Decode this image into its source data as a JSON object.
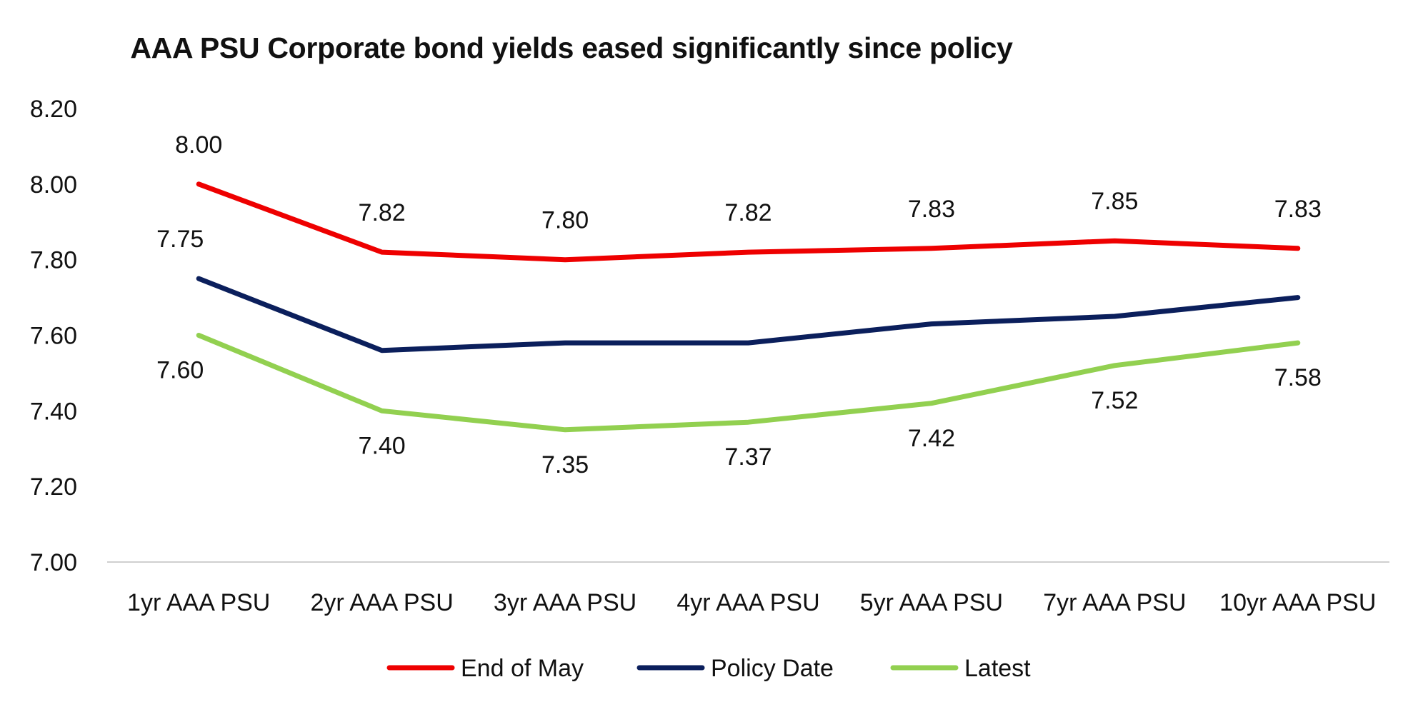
{
  "chart_data": {
    "type": "line",
    "title": "AAA PSU Corporate bond yields eased significantly since policy",
    "xlabel": "",
    "ylabel": "",
    "categories": [
      "1yr AAA PSU",
      "2yr AAA PSU",
      "3yr AAA PSU",
      "4yr AAA PSU",
      "5yr AAA PSU",
      "7yr AAA PSU",
      "10yr AAA PSU"
    ],
    "ylim": [
      7.0,
      8.2
    ],
    "yticks": [
      "7.00",
      "7.20",
      "7.40",
      "7.60",
      "7.80",
      "8.00",
      "8.20"
    ],
    "grid": false,
    "legend_position": "bottom",
    "series": [
      {
        "name": "End of May",
        "color": "#ee0000",
        "values": [
          8.0,
          7.82,
          7.8,
          7.82,
          7.83,
          7.85,
          7.83
        ],
        "labels": [
          "8.00",
          "7.82",
          "7.80",
          "7.82",
          "7.83",
          "7.85",
          "7.83"
        ],
        "label_position": "above"
      },
      {
        "name": "Policy Date",
        "color": "#0b1f5c",
        "values": [
          7.75,
          7.56,
          7.58,
          7.58,
          7.63,
          7.65,
          7.7
        ],
        "labels": [
          "7.75",
          "",
          "",
          "",
          "",
          "",
          ""
        ],
        "label_position": "above"
      },
      {
        "name": "Latest",
        "color": "#92d050",
        "values": [
          7.6,
          7.4,
          7.35,
          7.37,
          7.42,
          7.52,
          7.58
        ],
        "labels": [
          "7.60",
          "7.40",
          "7.35",
          "7.37",
          "7.42",
          "7.52",
          "7.58"
        ],
        "label_position": "below"
      }
    ]
  }
}
